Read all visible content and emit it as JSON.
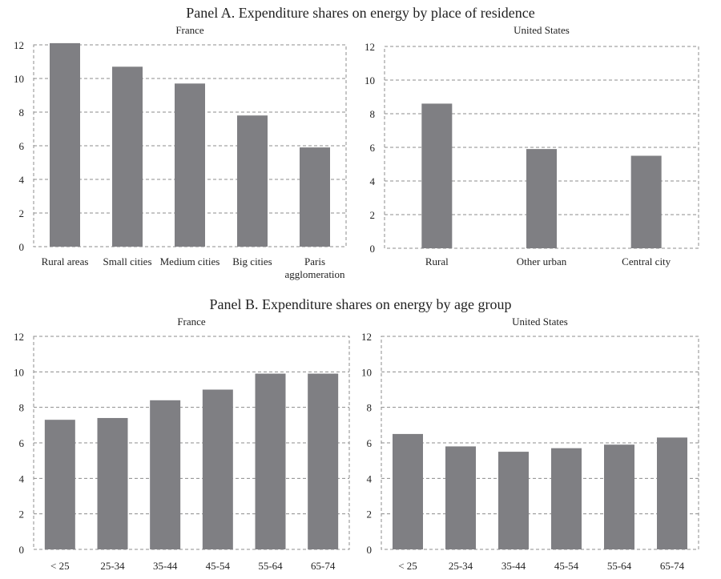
{
  "panels": [
    {
      "title": "Panel A. Expenditure shares on energy by place of residence"
    },
    {
      "title": "Panel B. Expenditure shares on energy by age group"
    }
  ],
  "colors": {
    "bar": "#7f7f83",
    "grid": "#8c8c8c"
  },
  "chart_data": [
    {
      "type": "bar",
      "title": "France",
      "categories": [
        "Rural areas",
        "Small cities",
        "Medium cities",
        "Big cities",
        "Paris agglomeration"
      ],
      "values": [
        12.1,
        10.7,
        9.7,
        7.8,
        5.9
      ],
      "ylim": [
        0,
        12
      ],
      "yticks": [
        0,
        2,
        4,
        6,
        8,
        10,
        12
      ],
      "grid": true,
      "xlabel": "",
      "ylabel": ""
    },
    {
      "type": "bar",
      "title": "United States",
      "categories": [
        "Rural",
        "Other urban",
        "Central city"
      ],
      "values": [
        8.6,
        5.9,
        5.5
      ],
      "ylim": [
        0,
        12
      ],
      "yticks": [
        0,
        2,
        4,
        6,
        8,
        10,
        12
      ],
      "grid": true,
      "xlabel": "",
      "ylabel": ""
    },
    {
      "type": "bar",
      "title": "France",
      "categories": [
        "< 25",
        "25-34",
        "35-44",
        "45-54",
        "55-64",
        "65-74"
      ],
      "values": [
        7.3,
        7.4,
        8.4,
        9.0,
        9.9,
        9.9
      ],
      "ylim": [
        0,
        12
      ],
      "yticks": [
        0,
        2,
        4,
        6,
        8,
        10,
        12
      ],
      "grid": true,
      "xlabel": "",
      "ylabel": ""
    },
    {
      "type": "bar",
      "title": "United States",
      "categories": [
        "< 25",
        "25-34",
        "35-44",
        "45-54",
        "55-64",
        "65-74"
      ],
      "values": [
        6.5,
        5.8,
        5.5,
        5.7,
        5.9,
        6.3
      ],
      "ylim": [
        0,
        12
      ],
      "yticks": [
        0,
        2,
        4,
        6,
        8,
        10,
        12
      ],
      "grid": true,
      "xlabel": "",
      "ylabel": ""
    }
  ]
}
